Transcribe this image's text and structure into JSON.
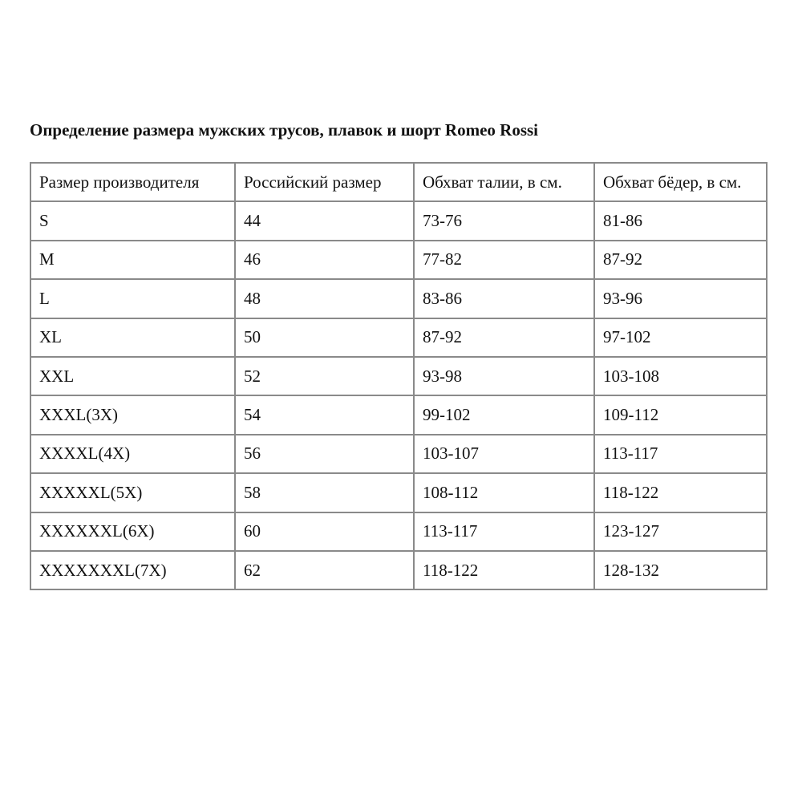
{
  "title": "Определение размера мужских трусов, плавок и шорт Romeo Rossi",
  "table": {
    "headers": [
      "Размер производителя",
      "Российский размер",
      "Обхват талии, в см.",
      "Обхват бёдер, в см."
    ],
    "rows": [
      [
        "S",
        "44",
        "73-76",
        "81-86"
      ],
      [
        "M",
        "46",
        "77-82",
        "87-92"
      ],
      [
        "L",
        "48",
        "83-86",
        "93-96"
      ],
      [
        "XL",
        "50",
        "87-92",
        "97-102"
      ],
      [
        "XXL",
        "52",
        "93-98",
        "103-108"
      ],
      [
        "XXXL(3X)",
        "54",
        "99-102",
        "109-112"
      ],
      [
        "XXXXL(4X)",
        "56",
        "103-107",
        "113-117"
      ],
      [
        "XXXXXL(5X)",
        "58",
        "108-112",
        "118-122"
      ],
      [
        "XXXXXXL(6X)",
        "60",
        "113-117",
        "123-127"
      ],
      [
        "XXXXXXXL(7X)",
        "62",
        "118-122",
        "128-132"
      ]
    ]
  }
}
